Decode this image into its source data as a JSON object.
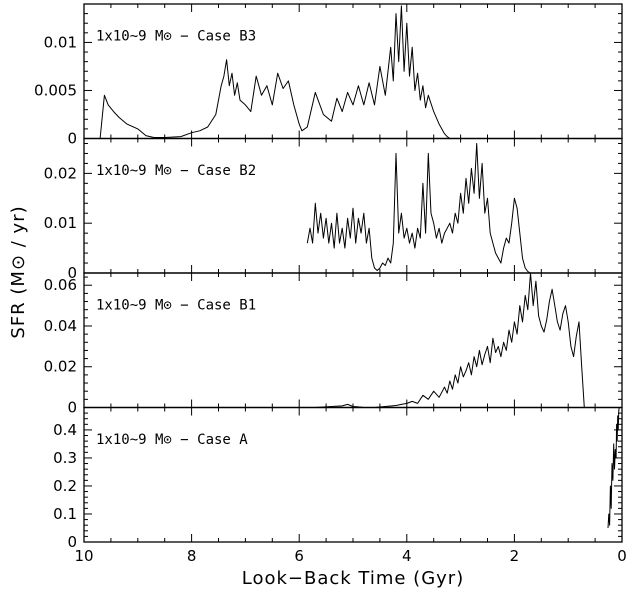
{
  "chart_data": {
    "type": "line",
    "xlabel": "Look−Back Time (Gyr)",
    "ylabel": "SFR (M⊙ / yr)",
    "xlim": [
      10,
      0
    ],
    "xticks": [
      "10",
      "8",
      "6",
      "4",
      "2",
      "0"
    ],
    "shared_x": true,
    "grid": false,
    "legend": "none",
    "line_color": "#000000",
    "panels": [
      {
        "label": "1x10~9 M⊙ − Case B3",
        "ylim": [
          0,
          0.014
        ],
        "yticks": [
          "0",
          "0.005",
          "0.01"
        ],
        "x": [
          9.7,
          9.62,
          9.55,
          9.45,
          9.35,
          9.2,
          9.0,
          8.85,
          8.7,
          8.5,
          8.2,
          8.0,
          7.85,
          7.7,
          7.55,
          7.45,
          7.4,
          7.35,
          7.3,
          7.25,
          7.2,
          7.15,
          7.1,
          7.0,
          6.9,
          6.8,
          6.7,
          6.6,
          6.5,
          6.4,
          6.3,
          6.2,
          6.1,
          6.05,
          6.0,
          5.95,
          5.85,
          5.7,
          5.55,
          5.4,
          5.3,
          5.2,
          5.1,
          5.0,
          4.9,
          4.8,
          4.7,
          4.6,
          4.5,
          4.4,
          4.3,
          4.25,
          4.2,
          4.15,
          4.1,
          4.05,
          4.0,
          3.95,
          3.9,
          3.85,
          3.8,
          3.75,
          3.7,
          3.65,
          3.6,
          3.5,
          3.4,
          3.3,
          3.25,
          3.2
        ],
        "values": [
          0.0,
          0.0045,
          0.0035,
          0.0028,
          0.0022,
          0.0015,
          0.001,
          0.0003,
          0.0001,
          0.0001,
          0.0002,
          0.0006,
          0.0008,
          0.0012,
          0.0025,
          0.0055,
          0.0065,
          0.0082,
          0.0055,
          0.0068,
          0.0045,
          0.0058,
          0.004,
          0.0035,
          0.0028,
          0.0065,
          0.0045,
          0.0055,
          0.0035,
          0.0068,
          0.0052,
          0.006,
          0.0035,
          0.0025,
          0.0015,
          0.0008,
          0.0012,
          0.0048,
          0.0025,
          0.0018,
          0.0042,
          0.0028,
          0.0048,
          0.0035,
          0.0055,
          0.0035,
          0.0058,
          0.0035,
          0.0075,
          0.0045,
          0.0095,
          0.006,
          0.013,
          0.008,
          0.0138,
          0.007,
          0.012,
          0.0065,
          0.0095,
          0.005,
          0.0068,
          0.004,
          0.0055,
          0.0032,
          0.0045,
          0.0028,
          0.0015,
          0.0005,
          0.0002,
          0.0
        ]
      },
      {
        "label": "1x10~9 M⊙ − Case B2",
        "ylim": [
          0,
          0.027
        ],
        "yticks": [
          "0",
          "0.01",
          "0.02"
        ],
        "x": [
          5.85,
          5.8,
          5.75,
          5.7,
          5.65,
          5.6,
          5.55,
          5.5,
          5.45,
          5.4,
          5.35,
          5.3,
          5.25,
          5.2,
          5.15,
          5.1,
          5.05,
          5.0,
          4.95,
          4.9,
          4.85,
          4.8,
          4.75,
          4.7,
          4.65,
          4.6,
          4.55,
          4.5,
          4.45,
          4.4,
          4.35,
          4.3,
          4.25,
          4.2,
          4.15,
          4.1,
          4.05,
          4.0,
          3.95,
          3.9,
          3.85,
          3.8,
          3.75,
          3.7,
          3.65,
          3.6,
          3.55,
          3.5,
          3.45,
          3.4,
          3.35,
          3.3,
          3.25,
          3.2,
          3.15,
          3.1,
          3.05,
          3.0,
          2.95,
          2.9,
          2.85,
          2.8,
          2.75,
          2.7,
          2.65,
          2.6,
          2.55,
          2.5,
          2.45,
          2.4,
          2.35,
          2.3,
          2.25,
          2.2,
          2.15,
          2.1,
          2.05,
          2.0,
          1.95,
          1.9,
          1.85,
          1.8,
          1.75,
          1.7
        ],
        "values": [
          0.006,
          0.009,
          0.006,
          0.014,
          0.008,
          0.012,
          0.007,
          0.011,
          0.006,
          0.01,
          0.005,
          0.012,
          0.006,
          0.009,
          0.005,
          0.011,
          0.007,
          0.013,
          0.006,
          0.011,
          0.008,
          0.012,
          0.006,
          0.009,
          0.003,
          0.001,
          0.0005,
          0.001,
          0.002,
          0.0015,
          0.003,
          0.002,
          0.006,
          0.024,
          0.008,
          0.012,
          0.007,
          0.009,
          0.006,
          0.008,
          0.005,
          0.009,
          0.007,
          0.018,
          0.008,
          0.024,
          0.012,
          0.01,
          0.007,
          0.009,
          0.006,
          0.008,
          0.009,
          0.01,
          0.008,
          0.012,
          0.01,
          0.016,
          0.012,
          0.019,
          0.014,
          0.021,
          0.016,
          0.026,
          0.015,
          0.022,
          0.012,
          0.015,
          0.008,
          0.006,
          0.004,
          0.003,
          0.002,
          0.005,
          0.007,
          0.006,
          0.01,
          0.015,
          0.013,
          0.008,
          0.003,
          0.001,
          0.0003,
          0.0
        ]
      },
      {
        "label": "1x10~9 M⊙ − Case B1",
        "ylim": [
          0,
          0.066
        ],
        "yticks": [
          "0",
          "0.02",
          "0.04",
          "0.06"
        ],
        "x": [
          5.7,
          5.4,
          5.2,
          5.1,
          5.0,
          4.9,
          4.8,
          4.6,
          4.4,
          4.2,
          4.1,
          4.0,
          3.9,
          3.8,
          3.7,
          3.6,
          3.5,
          3.4,
          3.3,
          3.25,
          3.2,
          3.15,
          3.1,
          3.05,
          3.0,
          2.95,
          2.9,
          2.85,
          2.8,
          2.75,
          2.7,
          2.65,
          2.6,
          2.55,
          2.5,
          2.45,
          2.4,
          2.35,
          2.3,
          2.25,
          2.2,
          2.15,
          2.1,
          2.05,
          2.0,
          1.95,
          1.9,
          1.85,
          1.8,
          1.75,
          1.7,
          1.65,
          1.6,
          1.55,
          1.5,
          1.45,
          1.4,
          1.35,
          1.3,
          1.25,
          1.2,
          1.15,
          1.1,
          1.05,
          1.0,
          0.95,
          0.9,
          0.85,
          0.8,
          0.75,
          0.7
        ],
        "values": [
          0.0,
          0.0005,
          0.0008,
          0.0015,
          0.0005,
          0.0003,
          0.0,
          0.0,
          0.0005,
          0.001,
          0.0015,
          0.002,
          0.003,
          0.002,
          0.006,
          0.004,
          0.008,
          0.005,
          0.01,
          0.007,
          0.013,
          0.009,
          0.016,
          0.012,
          0.02,
          0.015,
          0.018,
          0.022,
          0.016,
          0.025,
          0.02,
          0.028,
          0.021,
          0.026,
          0.03,
          0.022,
          0.034,
          0.027,
          0.03,
          0.025,
          0.032,
          0.028,
          0.038,
          0.032,
          0.042,
          0.036,
          0.05,
          0.042,
          0.055,
          0.048,
          0.066,
          0.05,
          0.062,
          0.045,
          0.04,
          0.037,
          0.043,
          0.052,
          0.058,
          0.05,
          0.042,
          0.038,
          0.046,
          0.05,
          0.042,
          0.03,
          0.025,
          0.035,
          0.042,
          0.02,
          0.0
        ]
      },
      {
        "label": "1x10~9 M⊙ − Case A",
        "ylim": [
          0,
          0.48
        ],
        "yticks": [
          "0",
          "0.1",
          "0.2",
          "0.3",
          "0.4"
        ],
        "x": [
          0.26,
          0.245,
          0.23,
          0.215,
          0.2,
          0.185,
          0.17,
          0.155,
          0.14,
          0.125,
          0.11,
          0.1,
          0.09,
          0.08,
          0.07,
          0.06,
          0.05
        ],
        "values": [
          0.05,
          0.1,
          0.06,
          0.2,
          0.12,
          0.28,
          0.22,
          0.35,
          0.26,
          0.33,
          0.3,
          0.42,
          0.36,
          0.45,
          0.4,
          0.47,
          0.48
        ]
      }
    ]
  }
}
